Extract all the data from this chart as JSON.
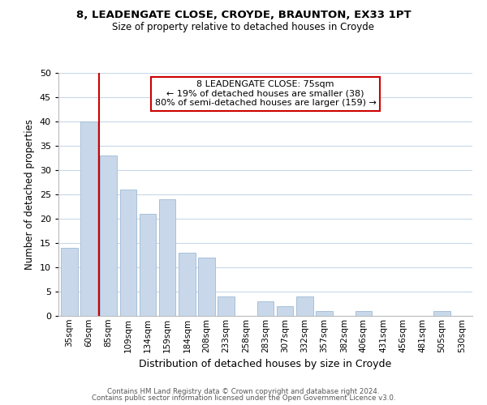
{
  "title1": "8, LEADENGATE CLOSE, CROYDE, BRAUNTON, EX33 1PT",
  "title2": "Size of property relative to detached houses in Croyde",
  "xlabel": "Distribution of detached houses by size in Croyde",
  "ylabel": "Number of detached properties",
  "bar_color": "#c8d8ea",
  "bar_edge_color": "#a8c0d8",
  "categories": [
    "35sqm",
    "60sqm",
    "85sqm",
    "109sqm",
    "134sqm",
    "159sqm",
    "184sqm",
    "208sqm",
    "233sqm",
    "258sqm",
    "283sqm",
    "307sqm",
    "332sqm",
    "357sqm",
    "382sqm",
    "406sqm",
    "431sqm",
    "456sqm",
    "481sqm",
    "505sqm",
    "530sqm"
  ],
  "values": [
    14,
    40,
    33,
    26,
    21,
    24,
    13,
    12,
    4,
    0,
    3,
    2,
    4,
    1,
    0,
    1,
    0,
    0,
    0,
    1,
    0
  ],
  "ylim": [
    0,
    50
  ],
  "yticks": [
    0,
    5,
    10,
    15,
    20,
    25,
    30,
    35,
    40,
    45,
    50
  ],
  "vline_color": "#cc0000",
  "annotation_line1": "8 LEADENGATE CLOSE: 75sqm",
  "annotation_line2": "← 19% of detached houses are smaller (38)",
  "annotation_line3": "80% of semi-detached houses are larger (159) →",
  "footer1": "Contains HM Land Registry data © Crown copyright and database right 2024.",
  "footer2": "Contains public sector information licensed under the Open Government Licence v3.0.",
  "background_color": "#ffffff",
  "grid_color": "#c8d8e8"
}
